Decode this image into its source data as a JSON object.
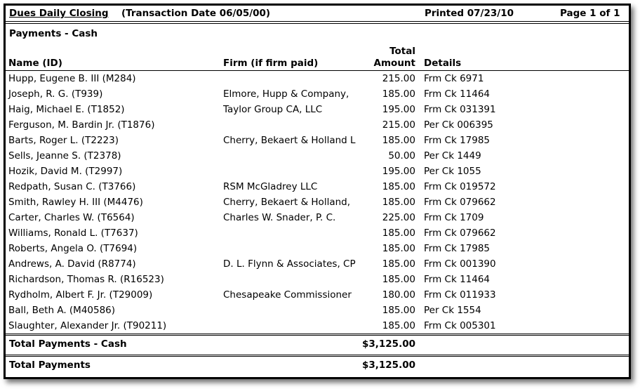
{
  "header": {
    "title": "Dues Daily Closing",
    "transaction_date": "(Transaction Date 06/05/00)",
    "printed": "Printed 07/23/10",
    "page": "Page 1 of 1"
  },
  "section_title": "Payments - Cash",
  "columns": {
    "name": "Name (ID)",
    "firm": "Firm (if firm paid)",
    "amount_line1": "Total",
    "amount_line2": "Amount",
    "details": "Details"
  },
  "rows": [
    {
      "name": "Hupp, Eugene B. III (M284)",
      "firm": "",
      "amount": "215.00",
      "details": "Frm Ck 6971"
    },
    {
      "name": "Joseph, R. G. (T939)",
      "firm": "Elmore, Hupp & Company,",
      "amount": "185.00",
      "details": "Frm Ck 11464"
    },
    {
      "name": "Haig, Michael E. (T1852)",
      "firm": "Taylor Group CA, LLC",
      "amount": "195.00",
      "details": "Frm Ck 031391"
    },
    {
      "name": "Ferguson, M. Bardin Jr. (T1876)",
      "firm": "",
      "amount": "215.00",
      "details": "Per Ck 006395"
    },
    {
      "name": "Barts, Roger L. (T2223)",
      "firm": "Cherry, Bekaert & Holland L",
      "amount": "185.00",
      "details": "Frm Ck 17985"
    },
    {
      "name": "Sells, Jeanne S. (T2378)",
      "firm": "",
      "amount": "50.00",
      "details": "Per Ck 1449"
    },
    {
      "name": "Hozik, David M. (T2997)",
      "firm": "",
      "amount": "195.00",
      "details": "Per Ck 1055"
    },
    {
      "name": "Redpath, Susan C. (T3766)",
      "firm": "RSM McGladrey LLC",
      "amount": "185.00",
      "details": "Frm Ck 019572"
    },
    {
      "name": "Smith, Rawley H. III (M4476)",
      "firm": "Cherry, Bekaert & Holland,",
      "amount": "185.00",
      "details": "Frm Ck 079662"
    },
    {
      "name": "Carter, Charles W. (T6564)",
      "firm": "Charles W. Snader, P. C.",
      "amount": "225.00",
      "details": "Frm Ck 1709"
    },
    {
      "name": "Williams, Ronald L. (T7637)",
      "firm": "",
      "amount": "185.00",
      "details": "Frm Ck 079662"
    },
    {
      "name": "Roberts, Angela O. (T7694)",
      "firm": "",
      "amount": "185.00",
      "details": "Frm Ck 17985"
    },
    {
      "name": "Andrews, A. David (R8774)",
      "firm": "D. L. Flynn & Associates, CP",
      "amount": "185.00",
      "details": "Frm Ck 001390"
    },
    {
      "name": "Richardson, Thomas R. (R16523)",
      "firm": "",
      "amount": "185.00",
      "details": "Frm Ck 11464"
    },
    {
      "name": "Rydholm, Albert F. Jr. (T29009)",
      "firm": "Chesapeake Commissioner",
      "amount": "180.00",
      "details": "Frm Ck 011933"
    },
    {
      "name": "Ball, Beth A. (M40586)",
      "firm": "",
      "amount": "185.00",
      "details": "Per Ck 1554"
    },
    {
      "name": "Slaughter, Alexander Jr. (T90211)",
      "firm": "",
      "amount": "185.00",
      "details": "Frm Ck 005301"
    }
  ],
  "totals": {
    "cash_label": "Total Payments - Cash",
    "cash_amount": "$3,125.00",
    "all_label": "Total Payments",
    "all_amount": "$3,125.00"
  }
}
